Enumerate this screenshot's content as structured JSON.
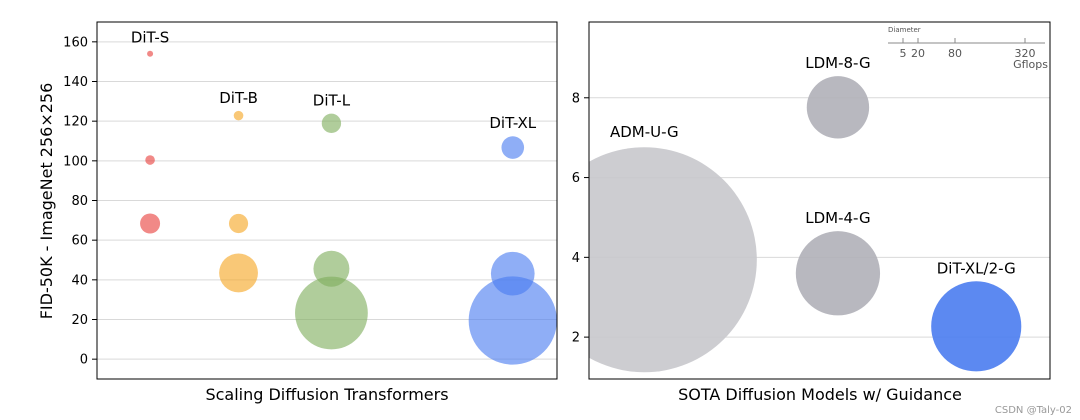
{
  "chart_data": [
    {
      "type": "scatter",
      "title": "",
      "xlabel": "Scaling Diffusion Transformers",
      "ylabel": "FID-50K - ImageNet 256×256",
      "ylim": [
        -10,
        170
      ],
      "yticks": [
        0,
        20,
        40,
        60,
        80,
        100,
        120,
        140,
        160
      ],
      "xlim": [
        0,
        5.2
      ],
      "grid": true,
      "bubble_size": "Gflops",
      "series": [
        {
          "name": "DiT-S",
          "color": "#e8413d",
          "points": [
            {
              "x": 0.6,
              "y": 154,
              "gflops": 0.4
            },
            {
              "x": 0.6,
              "y": 100.4,
              "gflops": 1.4
            },
            {
              "x": 0.6,
              "y": 68.4,
              "gflops": 6.1
            }
          ]
        },
        {
          "name": "DiT-B",
          "color": "#f5a623",
          "points": [
            {
              "x": 1.6,
              "y": 122.8,
              "gflops": 1.4
            },
            {
              "x": 1.6,
              "y": 68.4,
              "gflops": 5.6
            },
            {
              "x": 1.6,
              "y": 43.5,
              "gflops": 23
            }
          ]
        },
        {
          "name": "DiT-L",
          "color": "#7fae5e",
          "points": [
            {
              "x": 2.65,
              "y": 118.9,
              "gflops": 5.7
            },
            {
              "x": 2.65,
              "y": 45.6,
              "gflops": 19.7
            },
            {
              "x": 2.65,
              "y": 23.3,
              "gflops": 80.7
            }
          ]
        },
        {
          "name": "DiT-XL",
          "color": "#4a7cf0",
          "points": [
            {
              "x": 4.7,
              "y": 106.7,
              "gflops": 7.8
            },
            {
              "x": 4.7,
              "y": 43.1,
              "gflops": 29.1
            },
            {
              "x": 4.7,
              "y": 19.5,
              "gflops": 118.6
            }
          ]
        }
      ]
    },
    {
      "type": "scatter",
      "title": "",
      "xlabel": "SOTA Diffusion Models w/ Guidance",
      "ylabel": "",
      "ylim": [
        0.95,
        9.9
      ],
      "yticks": [
        2,
        4,
        6,
        8
      ],
      "xlim": [
        0,
        10
      ],
      "grid": true,
      "legend": {
        "title": "Diameter",
        "ticks": [
          "5",
          "20",
          "80",
          "320"
        ],
        "unit": "Gflops",
        "placement": "top-right"
      },
      "series": [
        {
          "name": "ADM-U-G",
          "color": "#c8c8cc",
          "points": [
            {
              "x": 1.2,
              "y": 3.94,
              "gflops": 742
            }
          ]
        },
        {
          "name": "LDM-8-G",
          "color": "#b0b0b8",
          "points": [
            {
              "x": 5.4,
              "y": 7.76,
              "gflops": 57
            }
          ]
        },
        {
          "name": "LDM-4-G",
          "color": "#b0b0b8",
          "points": [
            {
              "x": 5.4,
              "y": 3.6,
              "gflops": 104
            }
          ]
        },
        {
          "name": "DiT-XL/2-G",
          "color": "#4a7cf0",
          "points": [
            {
              "x": 8.4,
              "y": 2.27,
              "gflops": 119
            }
          ]
        }
      ]
    }
  ],
  "watermark": "CSDN @Taly-02"
}
